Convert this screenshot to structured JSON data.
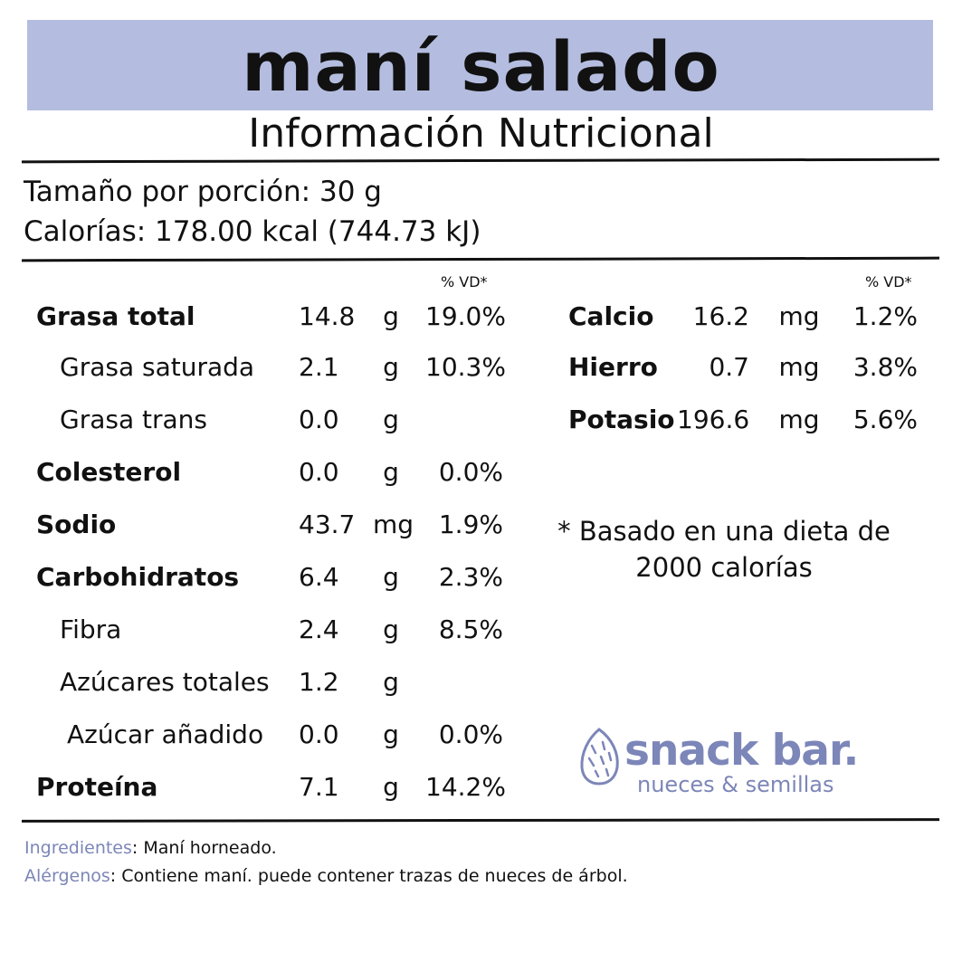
{
  "banner_color": "#b4bde0",
  "accent_color": "#7c86b8",
  "title": "maní salado",
  "subtitle": "Información Nutricional",
  "serving": {
    "size": "Tamaño por porción: 30 g",
    "calories": "Calorías: 178.00 kcal (744.73 kJ)"
  },
  "vd_label": "% VD*",
  "left_table": [
    {
      "name": "Grasa total",
      "amount": "14.8",
      "unit": "g",
      "dv": "19.0%",
      "bold": true
    },
    {
      "name": "Grasa saturada",
      "amount": "2.1",
      "unit": "g",
      "dv": "10.3%",
      "bold": false
    },
    {
      "name": "Grasa trans",
      "amount": "0.0",
      "unit": "g",
      "dv": "",
      "bold": false
    },
    {
      "name": "Colesterol",
      "amount": "0.0",
      "unit": "g",
      "dv": "0.0%",
      "bold": true
    },
    {
      "name": "Sodio",
      "amount": "43.7",
      "unit": "mg",
      "dv": "1.9%",
      "bold": true
    },
    {
      "name": "Carbohidratos",
      "amount": "6.4",
      "unit": "g",
      "dv": "2.3%",
      "bold": true
    },
    {
      "name": "Fibra",
      "amount": "2.4",
      "unit": "g",
      "dv": "8.5%",
      "bold": false
    },
    {
      "name": "Azúcares totales",
      "amount": "1.2",
      "unit": "g",
      "dv": "",
      "bold": false
    },
    {
      "name": "Azúcar añadido",
      "amount": "0.0",
      "unit": "g",
      "dv": "0.0%",
      "bold": false
    },
    {
      "name": "Proteína",
      "amount": "7.1",
      "unit": "g",
      "dv": "14.2%",
      "bold": true
    }
  ],
  "right_table": [
    {
      "name": "Calcio",
      "amount": "16.2",
      "unit": "mg",
      "dv": "1.2%"
    },
    {
      "name": "Hierro",
      "amount": "0.7",
      "unit": "mg",
      "dv": "3.8%"
    },
    {
      "name": "Potasio",
      "amount": "196.6",
      "unit": "mg",
      "dv": "5.6%"
    }
  ],
  "note": "* Basado en una dieta de 2000 calorías",
  "logo": {
    "icon": "almond-icon",
    "name": "snack bar.",
    "tagline": "nueces & semillas"
  },
  "footer": {
    "ingredients_label": "Ingredientes",
    "ingredients_value": ": Maní horneado.",
    "allergens_label": "Alérgenos",
    "allergens_value": ": Contiene maní. puede contener trazas de nueces de árbol."
  }
}
